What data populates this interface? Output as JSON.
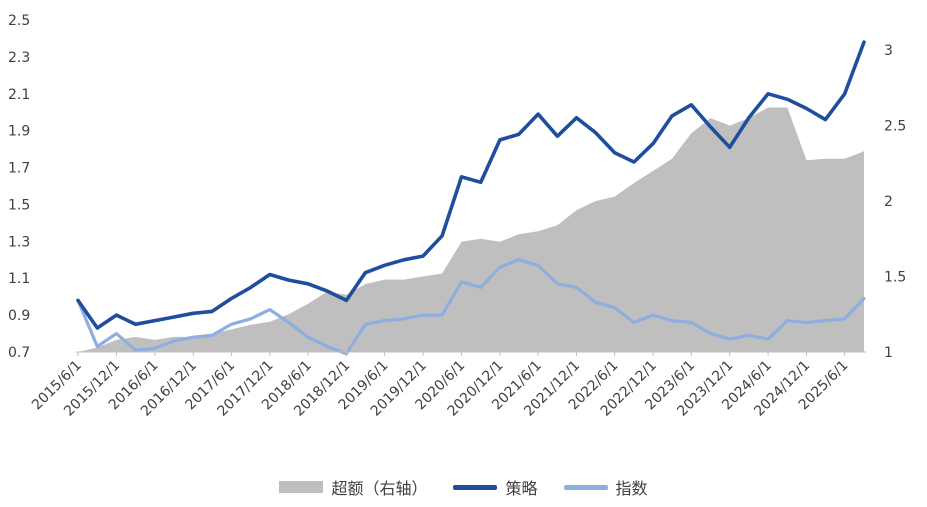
{
  "chart_data": {
    "type": "line",
    "x": [
      "2015/6/1",
      "2015/9/1",
      "2015/12/1",
      "2016/3/1",
      "2016/6/1",
      "2016/9/1",
      "2016/12/1",
      "2017/3/1",
      "2017/6/1",
      "2017/9/1",
      "2017/12/1",
      "2018/3/1",
      "2018/6/1",
      "2018/9/1",
      "2018/12/1",
      "2019/3/1",
      "2019/6/1",
      "2019/9/1",
      "2019/12/1",
      "2020/3/1",
      "2020/6/1",
      "2020/9/1",
      "2020/12/1",
      "2021/3/1",
      "2021/6/1",
      "2021/9/1",
      "2021/12/1",
      "2022/3/1",
      "2022/6/1",
      "2022/9/1",
      "2022/12/1",
      "2023/3/1",
      "2023/6/1",
      "2023/9/1",
      "2023/12/1",
      "2024/3/1",
      "2024/6/1",
      "2024/9/1",
      "2024/12/1",
      "2025/3/1",
      "2025/6/1",
      "2025/9/1"
    ],
    "xtick_labels": [
      "2015/6/1",
      "2015/12/1",
      "2016/6/1",
      "2016/12/1",
      "2017/6/1",
      "2017/12/1",
      "2018/6/1",
      "2018/12/1",
      "2019/6/1",
      "2019/12/1",
      "2020/6/1",
      "2020/12/1",
      "2021/6/1",
      "2021/12/1",
      "2022/6/1",
      "2022/12/1",
      "2023/6/1",
      "2023/12/1",
      "2024/6/1",
      "2024/12/1",
      "2025/6/1"
    ],
    "ylim": [
      0.7,
      2.5
    ],
    "yticks": [
      "0.7",
      "0.9",
      "1.1",
      "1.3",
      "1.5",
      "1.7",
      "1.9",
      "2.1",
      "2.3",
      "2.5"
    ],
    "y2lim": [
      1.0,
      3.2
    ],
    "y2ticks": [
      "1",
      "1.5",
      "2",
      "2.5",
      "3"
    ],
    "series": [
      {
        "name": "超额（右轴）",
        "type": "area",
        "axis": "right",
        "color": "#bfbfbf",
        "values": [
          1.0,
          1.03,
          1.08,
          1.1,
          1.08,
          1.1,
          1.1,
          1.12,
          1.15,
          1.18,
          1.2,
          1.25,
          1.32,
          1.4,
          1.38,
          1.45,
          1.48,
          1.48,
          1.5,
          1.52,
          1.73,
          1.75,
          1.73,
          1.78,
          1.8,
          1.84,
          1.94,
          2.0,
          2.03,
          2.12,
          2.2,
          2.28,
          2.45,
          2.55,
          2.5,
          2.55,
          2.62,
          2.62,
          2.27,
          2.28,
          2.28,
          2.33
        ]
      },
      {
        "name": "策略",
        "type": "line",
        "axis": "left",
        "color": "#1f4e9e",
        "values": [
          0.98,
          0.83,
          0.9,
          0.85,
          0.87,
          0.89,
          0.91,
          0.92,
          0.99,
          1.05,
          1.12,
          1.09,
          1.07,
          1.03,
          0.98,
          1.13,
          1.17,
          1.2,
          1.22,
          1.33,
          1.65,
          1.62,
          1.85,
          1.88,
          1.99,
          1.87,
          1.97,
          1.89,
          1.78,
          1.73,
          1.83,
          1.98,
          2.04,
          1.92,
          1.81,
          1.97,
          2.1,
          2.07,
          2.02,
          1.96,
          2.1,
          2.38
        ]
      },
      {
        "name": "指数",
        "type": "line",
        "axis": "left",
        "color": "#8eaee0",
        "values": [
          0.98,
          0.73,
          0.8,
          0.71,
          0.72,
          0.76,
          0.78,
          0.79,
          0.85,
          0.88,
          0.93,
          0.86,
          0.78,
          0.73,
          0.69,
          0.85,
          0.87,
          0.88,
          0.9,
          0.9,
          1.08,
          1.05,
          1.16,
          1.2,
          1.17,
          1.07,
          1.05,
          0.97,
          0.94,
          0.86,
          0.9,
          0.87,
          0.86,
          0.8,
          0.77,
          0.79,
          0.77,
          0.87,
          0.86,
          0.87,
          0.88,
          0.99
        ]
      }
    ],
    "legend_position": "bottom",
    "grid": false
  }
}
